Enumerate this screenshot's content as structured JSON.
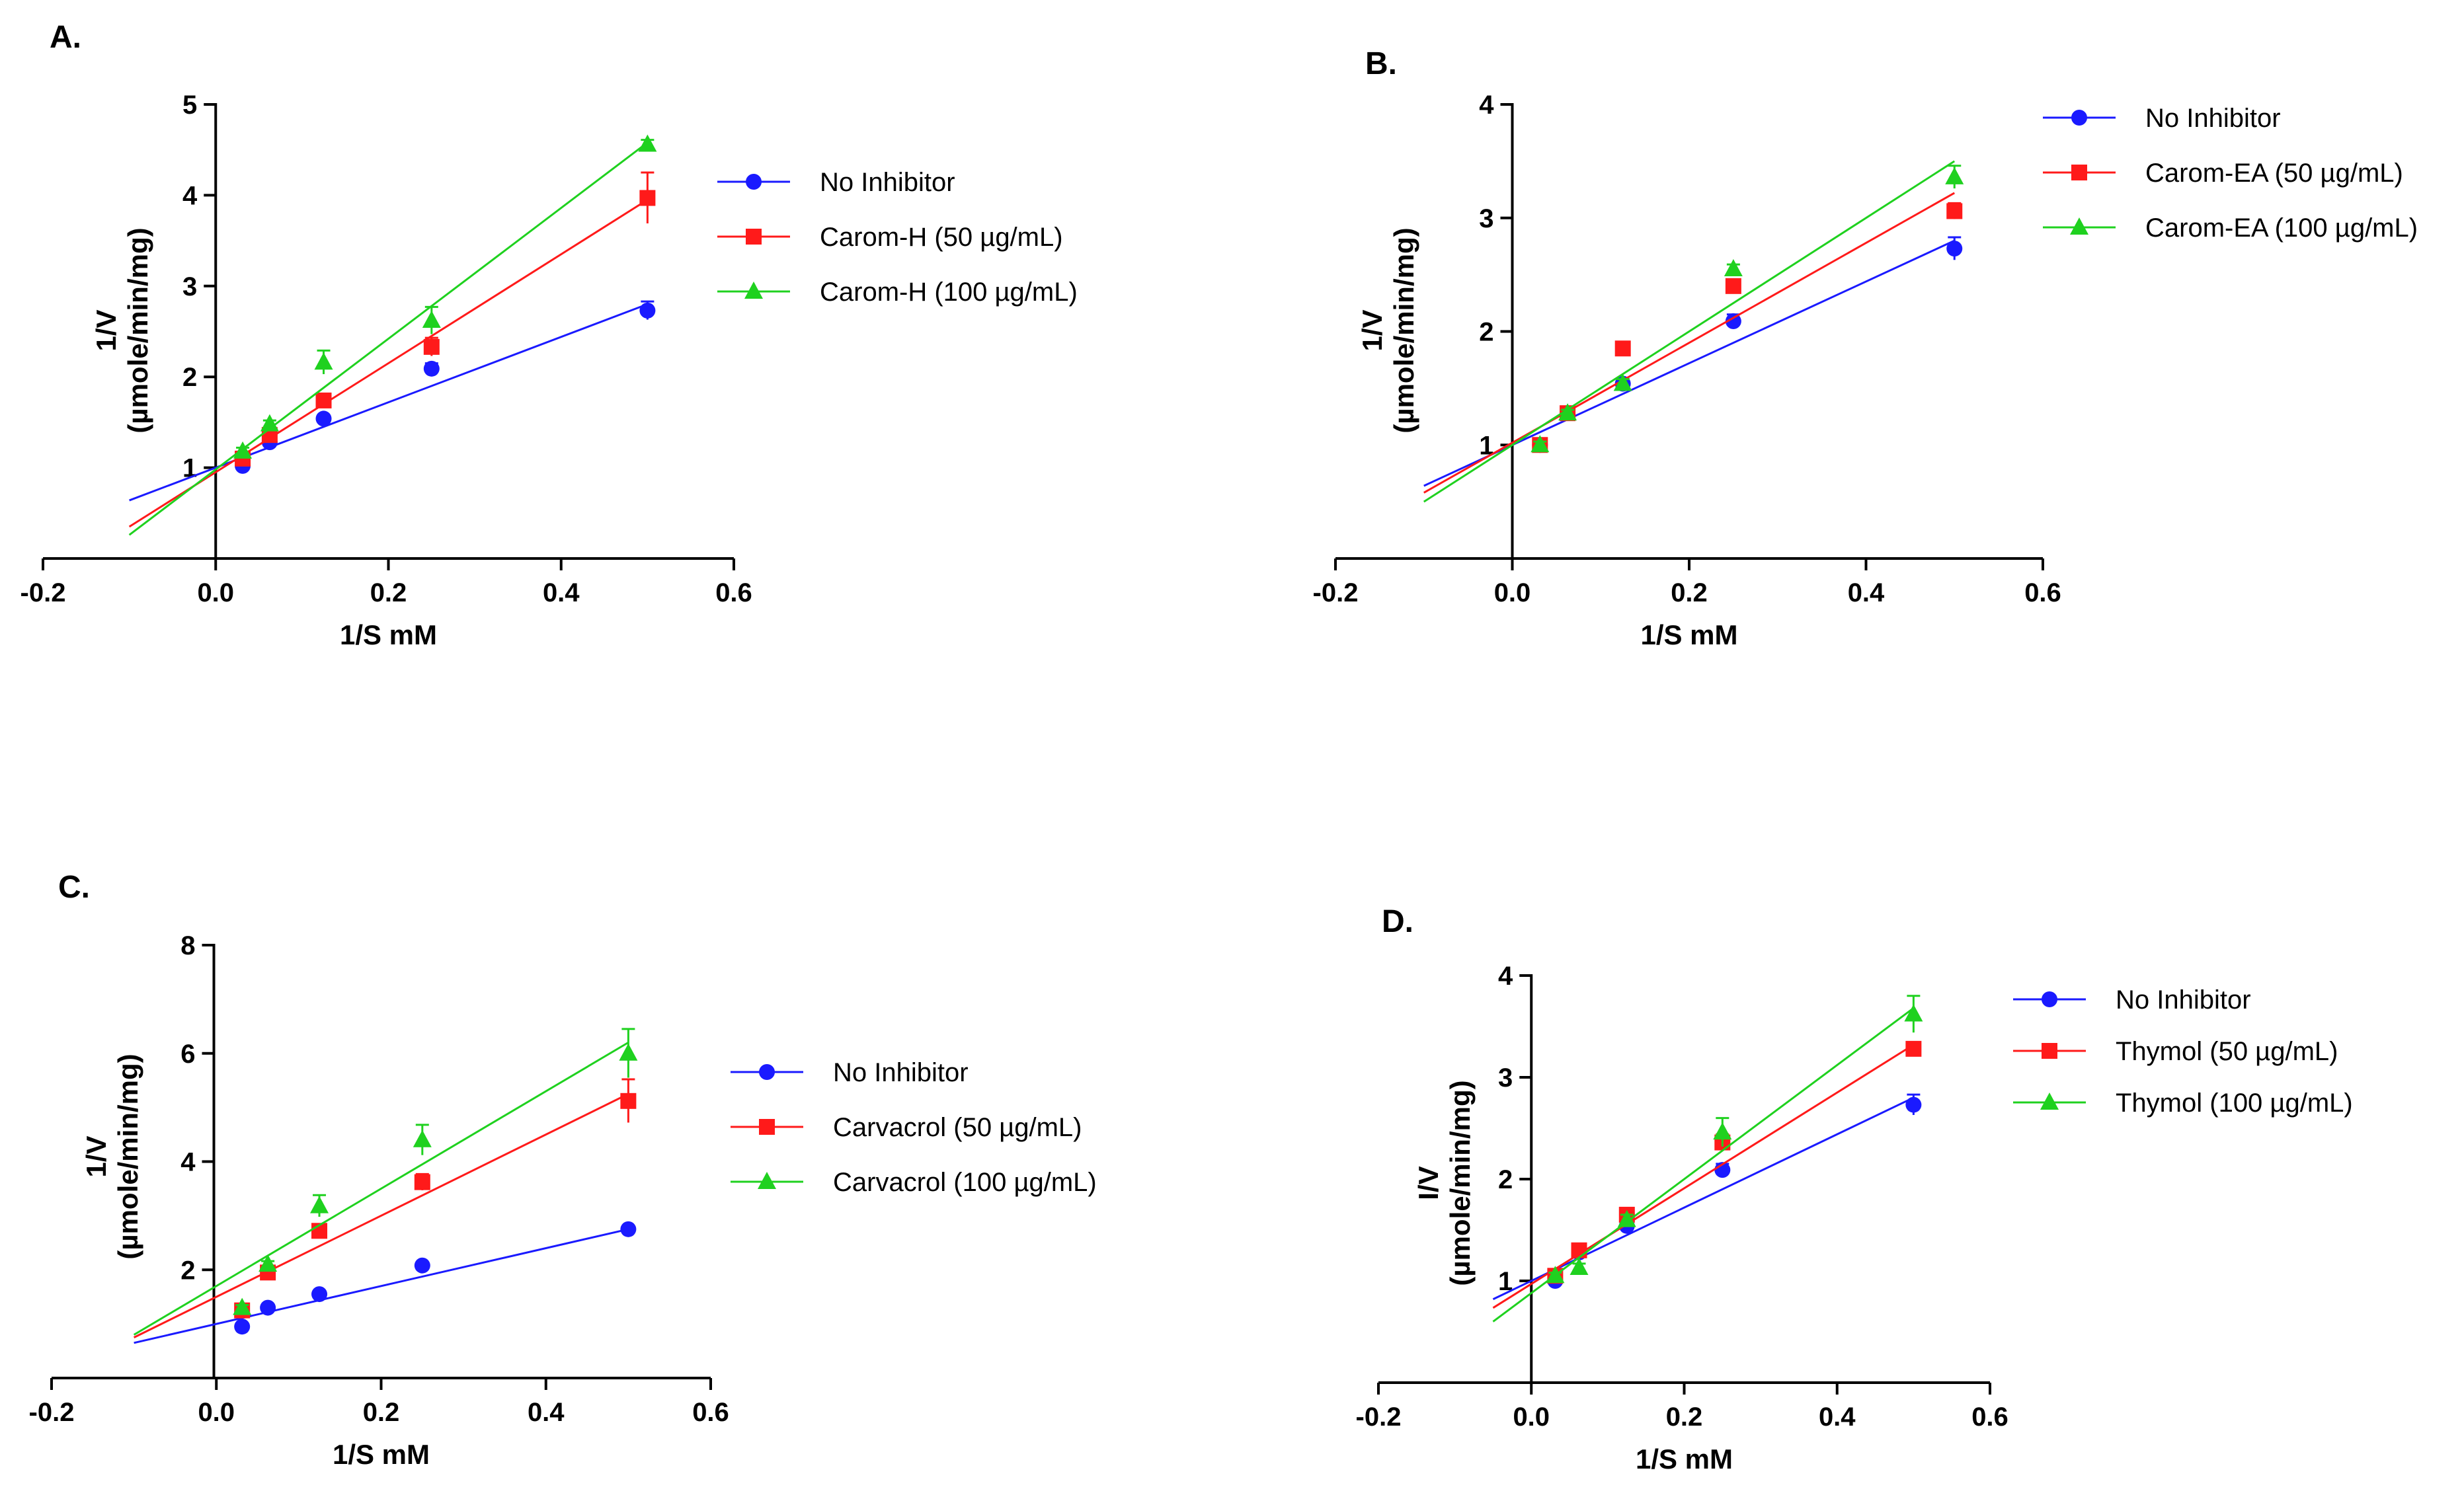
{
  "chart_data": [
    {
      "type": "scatter",
      "panel_label": "A.",
      "xlabel": "1/S mM",
      "ylabel": [
        "1/V",
        "(µmole/min/mg)"
      ],
      "xlim": [
        -0.2,
        0.6
      ],
      "ylim": [
        0,
        5
      ],
      "xticks": [
        "-0.2",
        "0.0",
        "0.2",
        "0.4",
        "0.6"
      ],
      "yticks": [
        "1",
        "2",
        "3",
        "4",
        "5"
      ],
      "series": [
        {
          "name": "No Inhibitor",
          "color": "#1a1aff",
          "marker": "circle",
          "x": [
            0.03125,
            0.0625,
            0.125,
            0.25,
            0.5
          ],
          "y": [
            1.02,
            1.28,
            1.54,
            2.09,
            2.73
          ],
          "err": [
            0.03,
            0.03,
            0.04,
            0.06,
            0.1
          ],
          "fit": [
            1.0,
            3.6
          ],
          "fit_range": [
            -0.1,
            0.5
          ]
        },
        {
          "name": "Carom-H (50 µg/mL)",
          "color": "#ff1a1a",
          "marker": "square",
          "x": [
            0.03125,
            0.0625,
            0.125,
            0.25,
            0.5
          ],
          "y": [
            1.1,
            1.36,
            1.74,
            2.33,
            3.97
          ],
          "err": [
            0.03,
            0.03,
            0.04,
            0.1,
            0.28
          ],
          "fit": [
            0.95,
            6.0
          ],
          "fit_range": [
            -0.1,
            0.5
          ]
        },
        {
          "name": "Carom-H (100 µg/mL)",
          "color": "#1fd11f",
          "marker": "triangle",
          "x": [
            0.03125,
            0.0625,
            0.125,
            0.25,
            0.5
          ],
          "y": [
            1.18,
            1.48,
            2.16,
            2.62,
            4.56
          ],
          "err": [
            0.04,
            0.04,
            0.13,
            0.15,
            0.05
          ],
          "fit": [
            0.98,
            7.2
          ],
          "fit_range": [
            -0.1,
            0.5
          ]
        }
      ]
    },
    {
      "type": "scatter",
      "panel_label": "B.",
      "xlabel": "1/S mM",
      "ylabel": [
        "1/V",
        "(µmole/min/mg)"
      ],
      "xlim": [
        -0.2,
        0.6
      ],
      "ylim": [
        0,
        4
      ],
      "xticks": [
        "-0.2",
        "0.0",
        "0.2",
        "0.4",
        "0.6"
      ],
      "yticks": [
        "1",
        "2",
        "3",
        "4"
      ],
      "series": [
        {
          "name": "No Inhibitor",
          "color": "#1a1aff",
          "marker": "circle",
          "x": [
            0.03125,
            0.0625,
            0.125,
            0.25,
            0.5
          ],
          "y": [
            1.0,
            1.28,
            1.54,
            2.09,
            2.73
          ],
          "err": [
            0.03,
            0.03,
            0.04,
            0.06,
            0.1
          ],
          "fit": [
            1.0,
            3.6
          ],
          "fit_range": [
            -0.1,
            0.5
          ]
        },
        {
          "name": "Carom-EA (50 µg/mL)",
          "color": "#ff1a1a",
          "marker": "square",
          "x": [
            0.03125,
            0.0625,
            0.125,
            0.25,
            0.5
          ],
          "y": [
            1.0,
            1.28,
            1.85,
            2.4,
            3.06
          ],
          "err": [
            0.03,
            0.03,
            0.05,
            0.06,
            0.07
          ],
          "fit": [
            1.02,
            4.4
          ],
          "fit_range": [
            -0.1,
            0.5
          ]
        },
        {
          "name": "Carom-EA (100 µg/mL)",
          "color": "#1fd11f",
          "marker": "triangle",
          "x": [
            0.03125,
            0.0625,
            0.125,
            0.25,
            0.5
          ],
          "y": [
            1.0,
            1.28,
            1.54,
            2.55,
            3.36
          ],
          "err": [
            0.03,
            0.03,
            0.04,
            0.04,
            0.1
          ],
          "fit": [
            1.0,
            5.0
          ],
          "fit_range": [
            -0.1,
            0.5
          ]
        }
      ]
    },
    {
      "type": "scatter",
      "panel_label": "C.",
      "xlabel": "1/S mM",
      "ylabel": [
        "1/V",
        "(µmole/min/mg)"
      ],
      "xlim": [
        -0.2,
        0.6
      ],
      "ylim": [
        0,
        8
      ],
      "xticks": [
        "-0.2",
        "0.0",
        "0.2",
        "0.4",
        "0.6"
      ],
      "yticks": [
        "2",
        "4",
        "6",
        "8"
      ],
      "series": [
        {
          "name": "No Inhibitor",
          "color": "#1a1aff",
          "marker": "circle",
          "x": [
            0.03125,
            0.0625,
            0.125,
            0.25,
            0.5
          ],
          "y": [
            0.95,
            1.3,
            1.55,
            2.08,
            2.75
          ],
          "err": [
            0.03,
            0.03,
            0.04,
            0.05,
            0.05
          ],
          "fit": [
            1.0,
            3.5
          ],
          "fit_range": [
            -0.1,
            0.5
          ]
        },
        {
          "name": "Carvacrol (50 µg/mL)",
          "color": "#ff1a1a",
          "marker": "square",
          "x": [
            0.03125,
            0.0625,
            0.125,
            0.25,
            0.5
          ],
          "y": [
            1.25,
            1.95,
            2.72,
            3.62,
            5.12
          ],
          "err": [
            0.05,
            0.06,
            0.08,
            0.15,
            0.4
          ],
          "fit": [
            1.5,
            7.5
          ],
          "fit_range": [
            -0.1,
            0.5
          ]
        },
        {
          "name": "Carvacrol (100 µg/mL)",
          "color": "#1fd11f",
          "marker": "triangle",
          "x": [
            0.03125,
            0.0625,
            0.125,
            0.25,
            0.5
          ],
          "y": [
            1.3,
            2.1,
            3.18,
            4.4,
            6.0
          ],
          "err": [
            0.05,
            0.06,
            0.2,
            0.28,
            0.45
          ],
          "fit": [
            1.7,
            9.0
          ],
          "fit_range": [
            -0.1,
            0.5
          ]
        }
      ]
    },
    {
      "type": "scatter",
      "panel_label": "D.",
      "xlabel": "1/S mM",
      "ylabel": [
        "I/V",
        "(µmole/min/mg)"
      ],
      "xlim": [
        -0.2,
        0.6
      ],
      "ylim": [
        0,
        4
      ],
      "xticks": [
        "-0.2",
        "0.0",
        "0.2",
        "0.4",
        "0.6"
      ],
      "yticks": [
        "1",
        "2",
        "3",
        "4"
      ],
      "series": [
        {
          "name": "No Inhibitor",
          "color": "#1a1aff",
          "marker": "circle",
          "x": [
            0.03125,
            0.0625,
            0.125,
            0.25,
            0.5
          ],
          "y": [
            1.0,
            1.28,
            1.54,
            2.09,
            2.73
          ],
          "err": [
            0.03,
            0.03,
            0.04,
            0.06,
            0.1
          ],
          "fit": [
            1.0,
            3.6
          ],
          "fit_range": [
            -0.05,
            0.5
          ]
        },
        {
          "name": "Thymol (50 µg/mL)",
          "color": "#ff1a1a",
          "marker": "square",
          "x": [
            0.03125,
            0.0625,
            0.125,
            0.25,
            0.5
          ],
          "y": [
            1.05,
            1.3,
            1.65,
            2.36,
            3.28
          ],
          "err": [
            0.03,
            0.03,
            0.05,
            0.08,
            0.05
          ],
          "fit": [
            0.97,
            4.7
          ],
          "fit_range": [
            -0.05,
            0.5
          ]
        },
        {
          "name": "Thymol (100 µg/mL)",
          "color": "#1fd11f",
          "marker": "triangle",
          "x": [
            0.03125,
            0.0625,
            0.125,
            0.25,
            0.5
          ],
          "y": [
            1.05,
            1.13,
            1.6,
            2.46,
            3.62
          ],
          "err": [
            0.03,
            0.04,
            0.05,
            0.14,
            0.18
          ],
          "fit": [
            0.88,
            5.6
          ],
          "fit_range": [
            -0.05,
            0.5
          ]
        }
      ]
    }
  ]
}
